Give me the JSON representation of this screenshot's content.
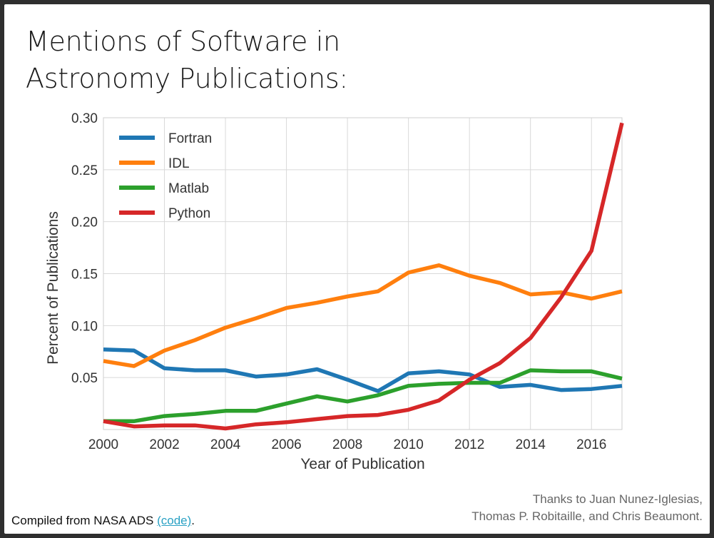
{
  "slide": {
    "title_line1": "Mentions of Software in",
    "title_line2": "Astronomy Publications:",
    "footer_text": "Compiled from NASA ADS ",
    "footer_link": "(code)",
    "footer_period": ".",
    "credits_line1": "Thanks to Juan Nunez-Iglesias,",
    "credits_line2": "Thomas P. Robitaille, and Chris Beaumont."
  },
  "colors": {
    "fortran": "#1f77b4",
    "idl": "#ff7f0e",
    "matlab": "#2ca02c",
    "python": "#d62728",
    "grid": "#d9d9d9",
    "link": "#2aa1c4"
  },
  "chart_data": {
    "type": "line",
    "xlabel": "Year of Publication",
    "ylabel": "Percent of Publications",
    "xlim": [
      2000,
      2017
    ],
    "ylim": [
      0,
      0.3
    ],
    "xticks": [
      2000,
      2002,
      2004,
      2006,
      2008,
      2010,
      2012,
      2014,
      2016
    ],
    "xtick_labels": [
      "2000",
      "2002",
      "2004",
      "2006",
      "2008",
      "2010",
      "2012",
      "2014",
      "2016"
    ],
    "yticks": [
      0.05,
      0.1,
      0.15,
      0.2,
      0.25,
      0.3
    ],
    "ytick_labels": [
      "0.05",
      "0.10",
      "0.15",
      "0.20",
      "0.25",
      "0.30"
    ],
    "grid": true,
    "legend": "top-left",
    "x": [
      2000,
      2001,
      2002,
      2003,
      2004,
      2005,
      2006,
      2007,
      2008,
      2009,
      2010,
      2011,
      2012,
      2013,
      2014,
      2015,
      2016,
      2017
    ],
    "series": [
      {
        "name": "Fortran",
        "color": "#1f77b4",
        "values": [
          0.077,
          0.076,
          0.059,
          0.057,
          0.057,
          0.051,
          0.053,
          0.058,
          0.048,
          0.037,
          0.054,
          0.056,
          0.053,
          0.041,
          0.043,
          0.038,
          0.039,
          0.042
        ]
      },
      {
        "name": "IDL",
        "color": "#ff7f0e",
        "values": [
          0.066,
          0.061,
          0.076,
          0.086,
          0.098,
          0.107,
          0.117,
          0.122,
          0.128,
          0.133,
          0.151,
          0.158,
          0.148,
          0.141,
          0.13,
          0.132,
          0.126,
          0.133
        ]
      },
      {
        "name": "Matlab",
        "color": "#2ca02c",
        "values": [
          0.008,
          0.008,
          0.013,
          0.015,
          0.018,
          0.018,
          0.025,
          0.032,
          0.027,
          0.033,
          0.042,
          0.044,
          0.045,
          0.045,
          0.057,
          0.056,
          0.056,
          0.049
        ]
      },
      {
        "name": "Python",
        "color": "#d62728",
        "values": [
          0.008,
          0.003,
          0.004,
          0.004,
          0.001,
          0.005,
          0.007,
          0.01,
          0.013,
          0.014,
          0.019,
          0.028,
          0.048,
          0.064,
          0.088,
          0.127,
          0.172,
          0.295
        ]
      }
    ]
  }
}
